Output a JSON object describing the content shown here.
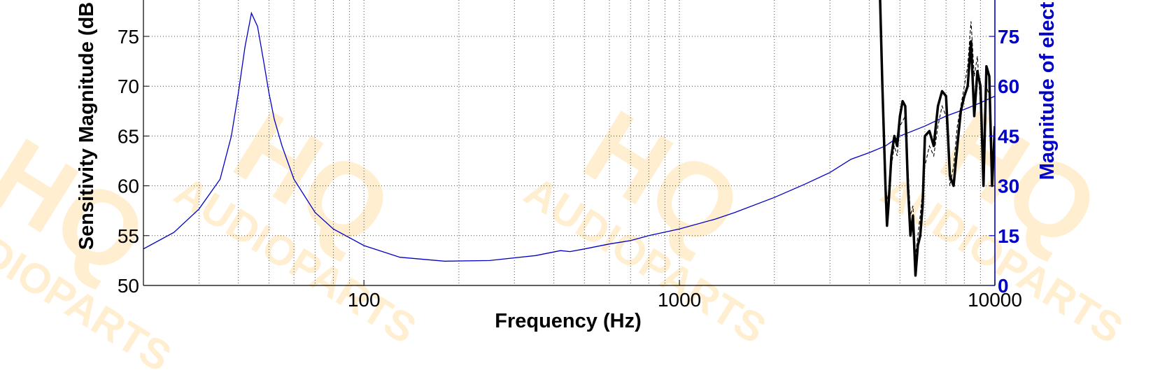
{
  "chart_data": {
    "type": "line",
    "xlabel": "Frequency (Hz)",
    "ylabel_left": "Sensitivity Magnitude (dB",
    "ylabel_right": "Magnitude of elect",
    "x_scale": "log",
    "xlim": [
      20,
      10000
    ],
    "ylim_left": [
      50,
      79
    ],
    "ylim_right": [
      0,
      79
    ],
    "x_ticks": [
      100,
      1000,
      10000
    ],
    "x_tick_labels": [
      "100",
      "1000",
      "10000"
    ],
    "y_ticks_left": [
      50,
      55,
      60,
      65,
      70,
      75
    ],
    "y_ticks_right": [
      0,
      15,
      30,
      45,
      60,
      75
    ],
    "grid": true,
    "watermark": "HQ AUDIOPARTS",
    "colors": {
      "impedance": "#0000c8",
      "sensitivity": "#000000",
      "right_axis": "#0000c8",
      "watermark": "#ffd27a"
    },
    "series": [
      {
        "axis": "right",
        "style": "thin-blue",
        "x": [
          20,
          25,
          30,
          35,
          38,
          40,
          42,
          44,
          46,
          48,
          50,
          52,
          55,
          60,
          70,
          80,
          100,
          130,
          180,
          250,
          350,
          420,
          450,
          500,
          600,
          700,
          800,
          1000,
          1300,
          1500,
          2000,
          2500,
          3000,
          3500,
          4000,
          4500,
          5000,
          6000,
          7000,
          8000,
          9000,
          10000
        ],
        "y": [
          11,
          16,
          23,
          32,
          45,
          58,
          72,
          82,
          78,
          68,
          58,
          50,
          42,
          32,
          22,
          17,
          12,
          8.5,
          7.3,
          7.5,
          9,
          10.5,
          10.2,
          11,
          12.5,
          13.5,
          15,
          17,
          20,
          22,
          26.5,
          30.5,
          34,
          38,
          40,
          42,
          45,
          48,
          51,
          53,
          55,
          57
        ]
      },
      {
        "axis": "left",
        "style": "thick-black",
        "x": [
          4300,
          4400,
          4500,
          4550,
          4600,
          4700,
          4800,
          4900,
          5000,
          5100,
          5200,
          5300,
          5400,
          5500,
          5600,
          5700,
          5800,
          5900,
          6000,
          6200,
          6400,
          6600,
          6800,
          7000,
          7200,
          7400,
          7600,
          7800,
          8000,
          8200,
          8400,
          8600,
          8800,
          9000,
          9200,
          9400,
          9600,
          9800,
          10000
        ],
        "y": [
          82,
          70,
          60,
          56,
          58,
          63,
          65,
          64,
          67,
          68.5,
          68,
          60,
          55,
          57,
          51,
          54,
          55,
          58,
          65,
          65.5,
          64,
          68,
          69.5,
          69,
          61,
          60,
          64,
          67.5,
          69,
          70,
          74.5,
          67,
          71.5,
          70,
          60,
          72,
          71,
          60,
          66
        ]
      },
      {
        "axis": "left",
        "style": "thin-dashed-black",
        "x": [
          4400,
          4500,
          4600,
          4700,
          4800,
          4900,
          5000,
          5200,
          5400,
          5500,
          5600,
          5800,
          6000,
          6200,
          6400,
          6600,
          6800,
          7000,
          7200,
          7400,
          7600,
          7800,
          8000,
          8200,
          8400,
          8600,
          8800,
          9000,
          9200,
          9400,
          9600,
          9800,
          10000
        ],
        "y": [
          68,
          60,
          58,
          62,
          64,
          63,
          66,
          67,
          57,
          58,
          53,
          57,
          62,
          64,
          63,
          66,
          68,
          67,
          60,
          62,
          66,
          68,
          70,
          72,
          76.5,
          71,
          73,
          68,
          62,
          70,
          69,
          62,
          65
        ]
      }
    ]
  }
}
